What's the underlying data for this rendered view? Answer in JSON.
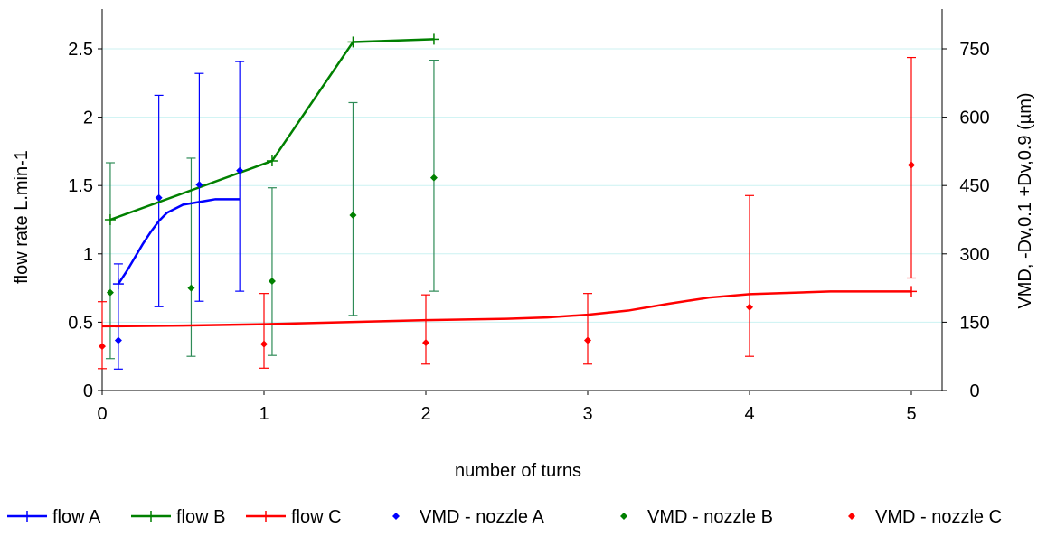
{
  "chart_data": {
    "type": "line",
    "xlabel": "number of turns",
    "ylabel_left": "flow rate L.min-1",
    "ylabel_right": "VMD, -Dv,0.1 +Dv,0.9 (µm)",
    "xlim": [
      0,
      5.2
    ],
    "ylim_left": [
      0,
      2.5
    ],
    "ylim_right": [
      0,
      750
    ],
    "x_ticks": [
      "0",
      "1",
      "2",
      "3",
      "4",
      "5"
    ],
    "y_left_ticks": [
      "0",
      "0.5",
      "1",
      "1.5",
      "2",
      "2.5"
    ],
    "y_right_ticks": [
      "0",
      "150",
      "300",
      "450",
      "600",
      "750"
    ],
    "grid": "horizontal",
    "legend_position": "bottom",
    "colors": {
      "flow_A": "#0000ff",
      "flow_B": "#008000",
      "flow_C": "#ff0000",
      "err_B": "#2e8b57",
      "gridline": "#ccf2f2"
    },
    "lines": [
      {
        "name": "flow A",
        "color": "#0000ff",
        "x": [
          0.1,
          0.15,
          0.2,
          0.25,
          0.3,
          0.35,
          0.4,
          0.45,
          0.5,
          0.55,
          0.6,
          0.65,
          0.7,
          0.75,
          0.8,
          0.85
        ],
        "y": [
          0.78,
          0.87,
          0.97,
          1.07,
          1.16,
          1.24,
          1.3,
          1.33,
          1.36,
          1.37,
          1.38,
          1.39,
          1.4,
          1.4,
          1.4,
          1.4
        ],
        "markers": [
          [
            0.1,
            0.78
          ]
        ]
      },
      {
        "name": "flow B",
        "color": "#008000",
        "x": [
          0.05,
          1.05,
          1.55,
          2.05
        ],
        "y": [
          1.25,
          1.68,
          2.55,
          2.57
        ],
        "markers": [
          [
            0.05,
            1.25
          ],
          [
            1.05,
            1.68
          ],
          [
            1.55,
            2.55
          ],
          [
            2.05,
            2.57
          ]
        ]
      },
      {
        "name": "flow C",
        "color": "#ff0000",
        "x": [
          0,
          0.5,
          1,
          1.5,
          2,
          2.5,
          2.75,
          3,
          3.25,
          3.5,
          3.75,
          4,
          4.5,
          5
        ],
        "y": [
          0.47,
          0.475,
          0.485,
          0.5,
          0.515,
          0.525,
          0.535,
          0.555,
          0.585,
          0.635,
          0.68,
          0.705,
          0.725,
          0.725
        ],
        "markers": [
          [
            5,
            0.725
          ]
        ]
      }
    ],
    "scatter": [
      {
        "name": "VMD - nozzle A",
        "color": "#0000ff",
        "points": [
          {
            "x": 0.1,
            "y": 110,
            "low": 47,
            "high": 278
          },
          {
            "x": 0.35,
            "y": 423,
            "low": 184,
            "high": 648
          },
          {
            "x": 0.6,
            "y": 452,
            "low": 196,
            "high": 696
          },
          {
            "x": 0.85,
            "y": 483,
            "low": 218,
            "high": 722
          }
        ]
      },
      {
        "name": "VMD - nozzle B",
        "color": "#008000",
        "points": [
          {
            "x": 0.05,
            "y": 215,
            "low": 70,
            "high": 500
          },
          {
            "x": 0.55,
            "y": 225,
            "low": 75,
            "high": 510
          },
          {
            "x": 1.05,
            "y": 240,
            "low": 77,
            "high": 445
          },
          {
            "x": 1.55,
            "y": 385,
            "low": 165,
            "high": 632
          },
          {
            "x": 2.05,
            "y": 467,
            "low": 218,
            "high": 725
          }
        ]
      },
      {
        "name": "VMD - nozzle C",
        "color": "#ff0000",
        "points": [
          {
            "x": 0,
            "y": 97,
            "low": 48,
            "high": 195
          },
          {
            "x": 1,
            "y": 102,
            "low": 49,
            "high": 213
          },
          {
            "x": 2,
            "y": 105,
            "low": 58,
            "high": 210
          },
          {
            "x": 3,
            "y": 110,
            "low": 58,
            "high": 213
          },
          {
            "x": 4,
            "y": 183,
            "low": 75,
            "high": 428
          },
          {
            "x": 5,
            "y": 495,
            "low": 247,
            "high": 731
          }
        ]
      }
    ]
  }
}
